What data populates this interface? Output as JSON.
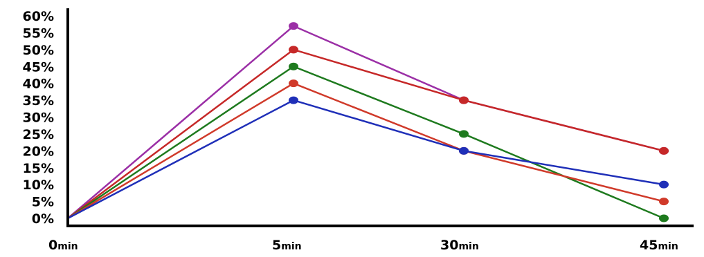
{
  "chart_data": {
    "type": "line",
    "x": [
      "0",
      "5",
      "30",
      "45"
    ],
    "x_unit": "min",
    "ylim": [
      0,
      60
    ],
    "y_ticks": [
      "0%",
      "5%",
      "10%",
      "15%",
      "20%",
      "25%",
      "30%",
      "35%",
      "40%",
      "45%",
      "50%",
      "55%",
      "60%"
    ],
    "grid": false,
    "series": [
      {
        "color": "#9b2fa6",
        "values": [
          0,
          57,
          35,
          20
        ]
      },
      {
        "color": "#c62828",
        "values": [
          0,
          50,
          35,
          20
        ]
      },
      {
        "color": "#1e7a1e",
        "values": [
          0,
          45,
          25,
          0
        ]
      },
      {
        "color": "#d03a2a",
        "values": [
          0,
          40,
          20,
          5
        ]
      },
      {
        "color": "#1f2fb8",
        "values": [
          0,
          35,
          20,
          10
        ]
      }
    ]
  }
}
